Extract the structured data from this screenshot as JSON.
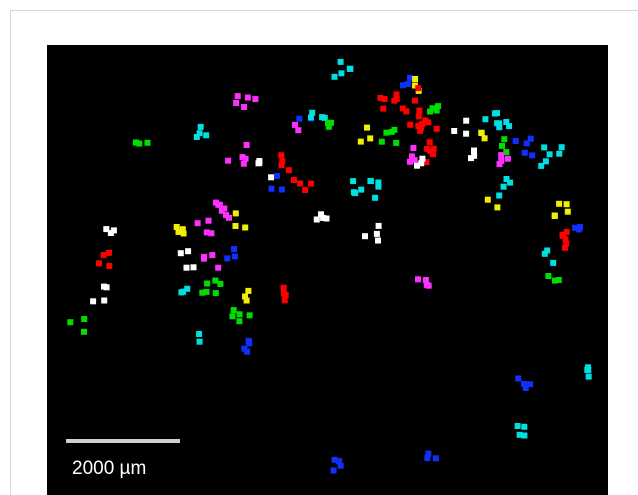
{
  "scale_bar": {
    "label": "2000 µm"
  }
}
